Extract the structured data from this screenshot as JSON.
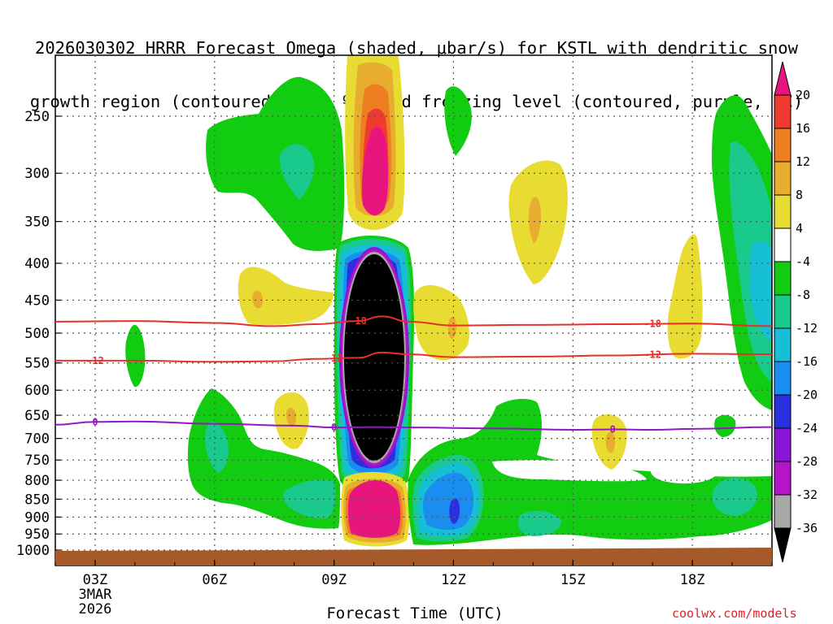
{
  "title_line1": "2026030302 HRRR Forecast Omega (shaded, μbar/s) for KSTL with dendritic snow",
  "title_line2": "growth region (contoured, red, ºC) and freezing level (contoured, purple, ºC)",
  "credit": "coolwx.com/models",
  "chart_data": {
    "type": "contour",
    "title": "2026030302 HRRR Forecast Omega (shaded, μbar/s) for KSTL with dendritic snow growth region (contoured, red, ºC) and freezing level (contoured, purple, ºC)",
    "xlabel": "Forecast Time (UTC)",
    "ylabel": "Pressure (hPa)",
    "x_range_hours": [
      2,
      20
    ],
    "x_ticks": [
      {
        "hour": 3,
        "label": "03Z",
        "sub1": "3MAR",
        "sub2": "2026"
      },
      {
        "hour": 6,
        "label": "06Z"
      },
      {
        "hour": 9,
        "label": "09Z"
      },
      {
        "hour": 12,
        "label": "12Z"
      },
      {
        "hour": 15,
        "label": "15Z"
      },
      {
        "hour": 18,
        "label": "18Z"
      }
    ],
    "y_range_hpa": [
      1020,
      200
    ],
    "y_ticks": [
      250,
      300,
      350,
      400,
      450,
      500,
      550,
      600,
      650,
      700,
      750,
      800,
      850,
      900,
      950,
      1000
    ],
    "colorbar": {
      "ticks": [
        "20",
        "16",
        "12",
        "8",
        "4",
        "-4",
        "-8",
        "-12",
        "-16",
        "-20",
        "-24",
        "-28",
        "-32",
        "-36"
      ],
      "bins": [
        {
          "range": "> 20",
          "color": "#e8157e"
        },
        {
          "range": "16 to 20",
          "color": "#ef3b2f"
        },
        {
          "range": "12 to 16",
          "color": "#ef7e22"
        },
        {
          "range": "8 to 12",
          "color": "#e8ac2e"
        },
        {
          "range": "4 to 8",
          "color": "#e8dc32"
        },
        {
          "range": "-4 to 4",
          "color": "#ffffff"
        },
        {
          "range": "-8 to -4",
          "color": "#11cc11"
        },
        {
          "range": "-12 to -8",
          "color": "#1ac98c"
        },
        {
          "range": "-16 to -12",
          "color": "#17bfd6"
        },
        {
          "range": "-20 to -16",
          "color": "#1a8df0"
        },
        {
          "range": "-24 to -20",
          "color": "#2a2fe0"
        },
        {
          "range": "-28 to -24",
          "color": "#8a15d6"
        },
        {
          "range": "-32 to -28",
          "color": "#b515c8"
        },
        {
          "range": "-36 to -32",
          "color": "#a8a8a8"
        },
        {
          "range": "< -36",
          "color": "#000000"
        }
      ]
    },
    "shaded_regions": [
      {
        "name": "ascent-core-upper",
        "hour_range": [
          9.0,
          10.8
        ],
        "hpa_range": [
          365,
          760
        ],
        "min_value": "< -36"
      },
      {
        "name": "subsidence-upper",
        "hour_range": [
          9.3,
          10.8
        ],
        "hpa_range": [
          200,
          345
        ],
        "max_value": "> 20"
      },
      {
        "name": "subsidence-lower",
        "hour_range": [
          9.3,
          10.7
        ],
        "hpa_range": [
          805,
          970
        ],
        "max_value": "> 20"
      },
      {
        "name": "ascent-low-level",
        "hour_range": [
          10.7,
          13.7
        ],
        "hpa_range": [
          760,
          960
        ],
        "min_value": "-24 to -20"
      },
      {
        "name": "ascent-right-column",
        "hour_range": [
          19.4,
          20.0
        ],
        "hpa_range": [
          225,
          590
        ],
        "min_value": "-16 to -12"
      }
    ],
    "contours": [
      {
        "name": "dendritic-growth-upper",
        "value": -18,
        "color": "#e8302a",
        "label": "-18",
        "points": [
          [
            2.0,
            482
          ],
          [
            4.0,
            481
          ],
          [
            6.0,
            484
          ],
          [
            7.5,
            489
          ],
          [
            8.5,
            486
          ],
          [
            9.6,
            481
          ],
          [
            10.2,
            474
          ],
          [
            10.9,
            482
          ],
          [
            12.0,
            488
          ],
          [
            14.0,
            487
          ],
          [
            16.0,
            486
          ],
          [
            18.0,
            485
          ],
          [
            20.0,
            489
          ]
        ]
      },
      {
        "name": "dendritic-growth-lower",
        "value": -12,
        "color": "#e8302a",
        "label": "-12",
        "points": [
          [
            2.0,
            546
          ],
          [
            4.0,
            546
          ],
          [
            6.0,
            548
          ],
          [
            7.5,
            547
          ],
          [
            8.5,
            543
          ],
          [
            9.6,
            541
          ],
          [
            10.2,
            532
          ],
          [
            10.9,
            535
          ],
          [
            12.0,
            540
          ],
          [
            14.0,
            539
          ],
          [
            16.0,
            537
          ],
          [
            18.0,
            534
          ],
          [
            20.0,
            535
          ]
        ]
      },
      {
        "name": "freezing-level",
        "value": 0,
        "color": "#9815c7",
        "label": "0",
        "points": [
          [
            2.0,
            670
          ],
          [
            3.0,
            664
          ],
          [
            4.0,
            663
          ],
          [
            6.0,
            668
          ],
          [
            8.0,
            672
          ],
          [
            9.0,
            676
          ],
          [
            10.0,
            675
          ],
          [
            11.0,
            676
          ],
          [
            13.0,
            678
          ],
          [
            15.0,
            681
          ],
          [
            16.0,
            680
          ],
          [
            17.0,
            681
          ],
          [
            18.0,
            679
          ],
          [
            20.0,
            675
          ]
        ]
      }
    ],
    "terrain": {
      "color": "#a65a2a",
      "top_hpa": 1000
    }
  }
}
